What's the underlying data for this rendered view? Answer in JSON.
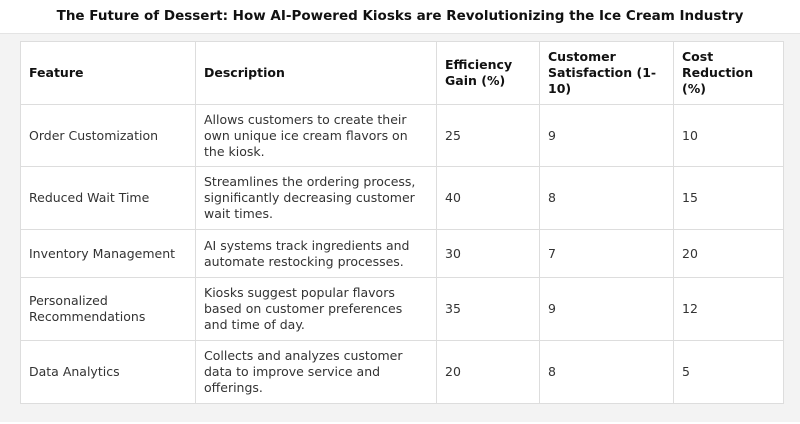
{
  "title": "The Future of Dessert: How AI-Powered Kiosks are Revolutionizing the Ice Cream Industry",
  "table": {
    "headers": [
      "Feature",
      "Description",
      "Efficiency Gain (%)",
      "Customer Satisfaction (1-10)",
      "Cost Reduction (%)"
    ],
    "rows": [
      [
        "Order Customization",
        "Allows customers to create their own unique ice cream flavors on the kiosk.",
        "25",
        "9",
        "10"
      ],
      [
        "Reduced Wait Time",
        "Streamlines the ordering process, significantly decreasing customer wait times.",
        "40",
        "8",
        "15"
      ],
      [
        "Inventory Management",
        "AI systems track ingredients and automate restocking processes.",
        "30",
        "7",
        "20"
      ],
      [
        "Personalized Recommendations",
        "Kiosks suggest popular flavors based on customer preferences and time of day.",
        "35",
        "9",
        "12"
      ],
      [
        "Data Analytics",
        "Collects and analyzes customer data to improve service and offerings.",
        "20",
        "8",
        "5"
      ]
    ]
  }
}
